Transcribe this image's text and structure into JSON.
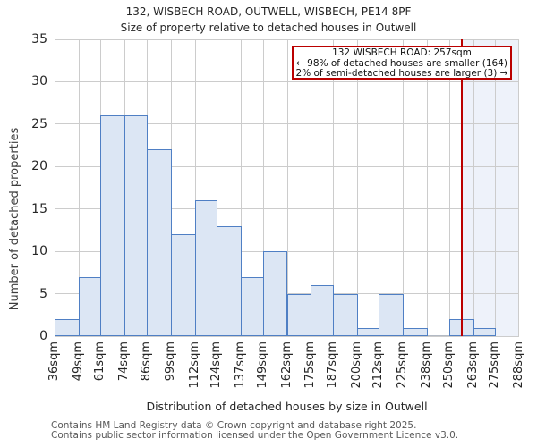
{
  "header": {
    "title_line1": "132, WISBECH ROAD, OUTWELL, WISBECH, PE14 8PF",
    "title_line2": "Size of property relative to detached houses in Outwell"
  },
  "chart_data": {
    "type": "bar",
    "title": "132, WISBECH ROAD, OUTWELL, WISBECH, PE14 8PF — Size of property relative to detached houses in Outwell",
    "xlabel": "Distribution of detached houses by size in Outwell",
    "ylabel": "Number of detached properties",
    "bin_edges_sqm": [
      36,
      49,
      61,
      74,
      86,
      99,
      112,
      124,
      137,
      149,
      162,
      175,
      187,
      200,
      212,
      225,
      238,
      250,
      263,
      275,
      288
    ],
    "x_tick_labels": [
      "36sqm",
      "49sqm",
      "61sqm",
      "74sqm",
      "86sqm",
      "99sqm",
      "112sqm",
      "124sqm",
      "137sqm",
      "149sqm",
      "162sqm",
      "175sqm",
      "187sqm",
      "200sqm",
      "212sqm",
      "225sqm",
      "238sqm",
      "250sqm",
      "263sqm",
      "275sqm",
      "288sqm"
    ],
    "values": [
      2,
      7,
      26,
      26,
      22,
      12,
      16,
      13,
      7,
      10,
      5,
      6,
      5,
      1,
      5,
      1,
      0,
      2,
      1,
      0
    ],
    "y_ticks": [
      0,
      5,
      10,
      15,
      20,
      25,
      30,
      35
    ],
    "ylim": [
      0,
      35
    ],
    "grid": true,
    "legend": "none",
    "colors": {
      "bar_fill": "#dce6f4",
      "bar_edge": "#4f7fc4",
      "gridline": "#cccccc",
      "marker_red": "#bb0000",
      "shade_fill": "#eef2fa"
    },
    "marker_line": {
      "value_sqm": 257
    },
    "shaded_region": {
      "from_sqm": 257,
      "to_sqm": 288
    },
    "annotation": {
      "line1": "132 WISBECH ROAD: 257sqm",
      "line2": "← 98% of detached houses are smaller (164)",
      "line3": "2% of semi-detached houses are larger (3) →"
    }
  },
  "footer": {
    "line1": "Contains HM Land Registry data © Crown copyright and database right 2025.",
    "line2": "Contains public sector information licensed under the Open Government Licence v3.0."
  }
}
